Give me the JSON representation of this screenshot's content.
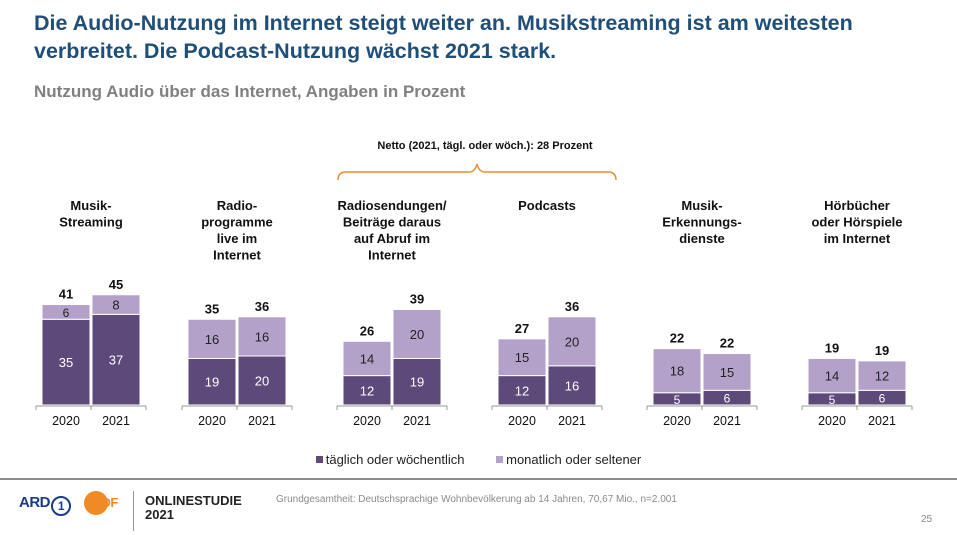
{
  "header": {
    "title": "Die Audio-Nutzung im Internet steigt weiter an. Musikstreaming ist am weitesten verbreitet. Die Podcast-Nutzung wächst 2021 stark.",
    "subtitle": "Nutzung Audio über das Internet, Angaben in Prozent"
  },
  "annotation": {
    "netto": "Netto (2021, tägl. oder wöch.): 28 Prozent",
    "brace_color": "#ed8b2f"
  },
  "chart_data": {
    "type": "bar",
    "stacked": true,
    "title": "Nutzung Audio über das Internet, Angaben in Prozent",
    "ylabel": "Prozent",
    "ylim": [
      0,
      50
    ],
    "grid": false,
    "legend_position": "bottom",
    "series": [
      {
        "name": "täglich oder wöchentlich",
        "color": "#5e4a7a"
      },
      {
        "name": "monatlich oder seltener",
        "color": "#b3a1c9"
      }
    ],
    "groups": [
      {
        "label": [
          "Musik-",
          "Streaming"
        ],
        "bars": [
          {
            "year": "2020",
            "values": [
              35,
              6
            ],
            "total": 41
          },
          {
            "year": "2021",
            "values": [
              37,
              8
            ],
            "total": 45
          }
        ]
      },
      {
        "label": [
          "Radio-",
          "programme",
          "live im",
          "Internet"
        ],
        "bars": [
          {
            "year": "2020",
            "values": [
              19,
              16
            ],
            "total": 35
          },
          {
            "year": "2021",
            "values": [
              20,
              16
            ],
            "total": 36
          }
        ]
      },
      {
        "label": [
          "Radiosendungen/",
          "Beiträge daraus",
          "auf Abruf im",
          "Internet"
        ],
        "bars": [
          {
            "year": "2020",
            "values": [
              12,
              14
            ],
            "total": 26
          },
          {
            "year": "2021",
            "values": [
              19,
              20
            ],
            "total": 39
          }
        ]
      },
      {
        "label": [
          "Podcasts"
        ],
        "bars": [
          {
            "year": "2020",
            "values": [
              12,
              15
            ],
            "total": 27
          },
          {
            "year": "2021",
            "values": [
              16,
              20
            ],
            "total": 36
          }
        ]
      },
      {
        "label": [
          "Musik-",
          "Erkennungs-",
          "dienste"
        ],
        "bars": [
          {
            "year": "2020",
            "values": [
              5,
              18
            ],
            "total": 22
          },
          {
            "year": "2021",
            "values": [
              6,
              15
            ],
            "total": 22
          }
        ]
      },
      {
        "label": [
          "Hörbücher",
          "oder Hörspiele",
          "im Internet"
        ],
        "bars": [
          {
            "year": "2020",
            "values": [
              5,
              14
            ],
            "total": 19
          },
          {
            "year": "2021",
            "values": [
              6,
              12
            ],
            "total": 19
          }
        ]
      }
    ]
  },
  "legend": {
    "items": [
      {
        "label": "täglich oder wöchentlich",
        "color": "#5e4a7a"
      },
      {
        "label": "monatlich oder seltener",
        "color": "#b3a1c9"
      }
    ]
  },
  "footer": {
    "ard_label": "ARD",
    "ard_number": "1",
    "zdf_label": "ZDF",
    "studie_line1": "ONLINESTUDIE",
    "studie_line2": "2021",
    "source": "Grundgesamtheit: Deutschsprachige Wohnbevölkerung ab 14 Jahren, 70,67 Mio., n=2.001",
    "page_number": "25"
  }
}
